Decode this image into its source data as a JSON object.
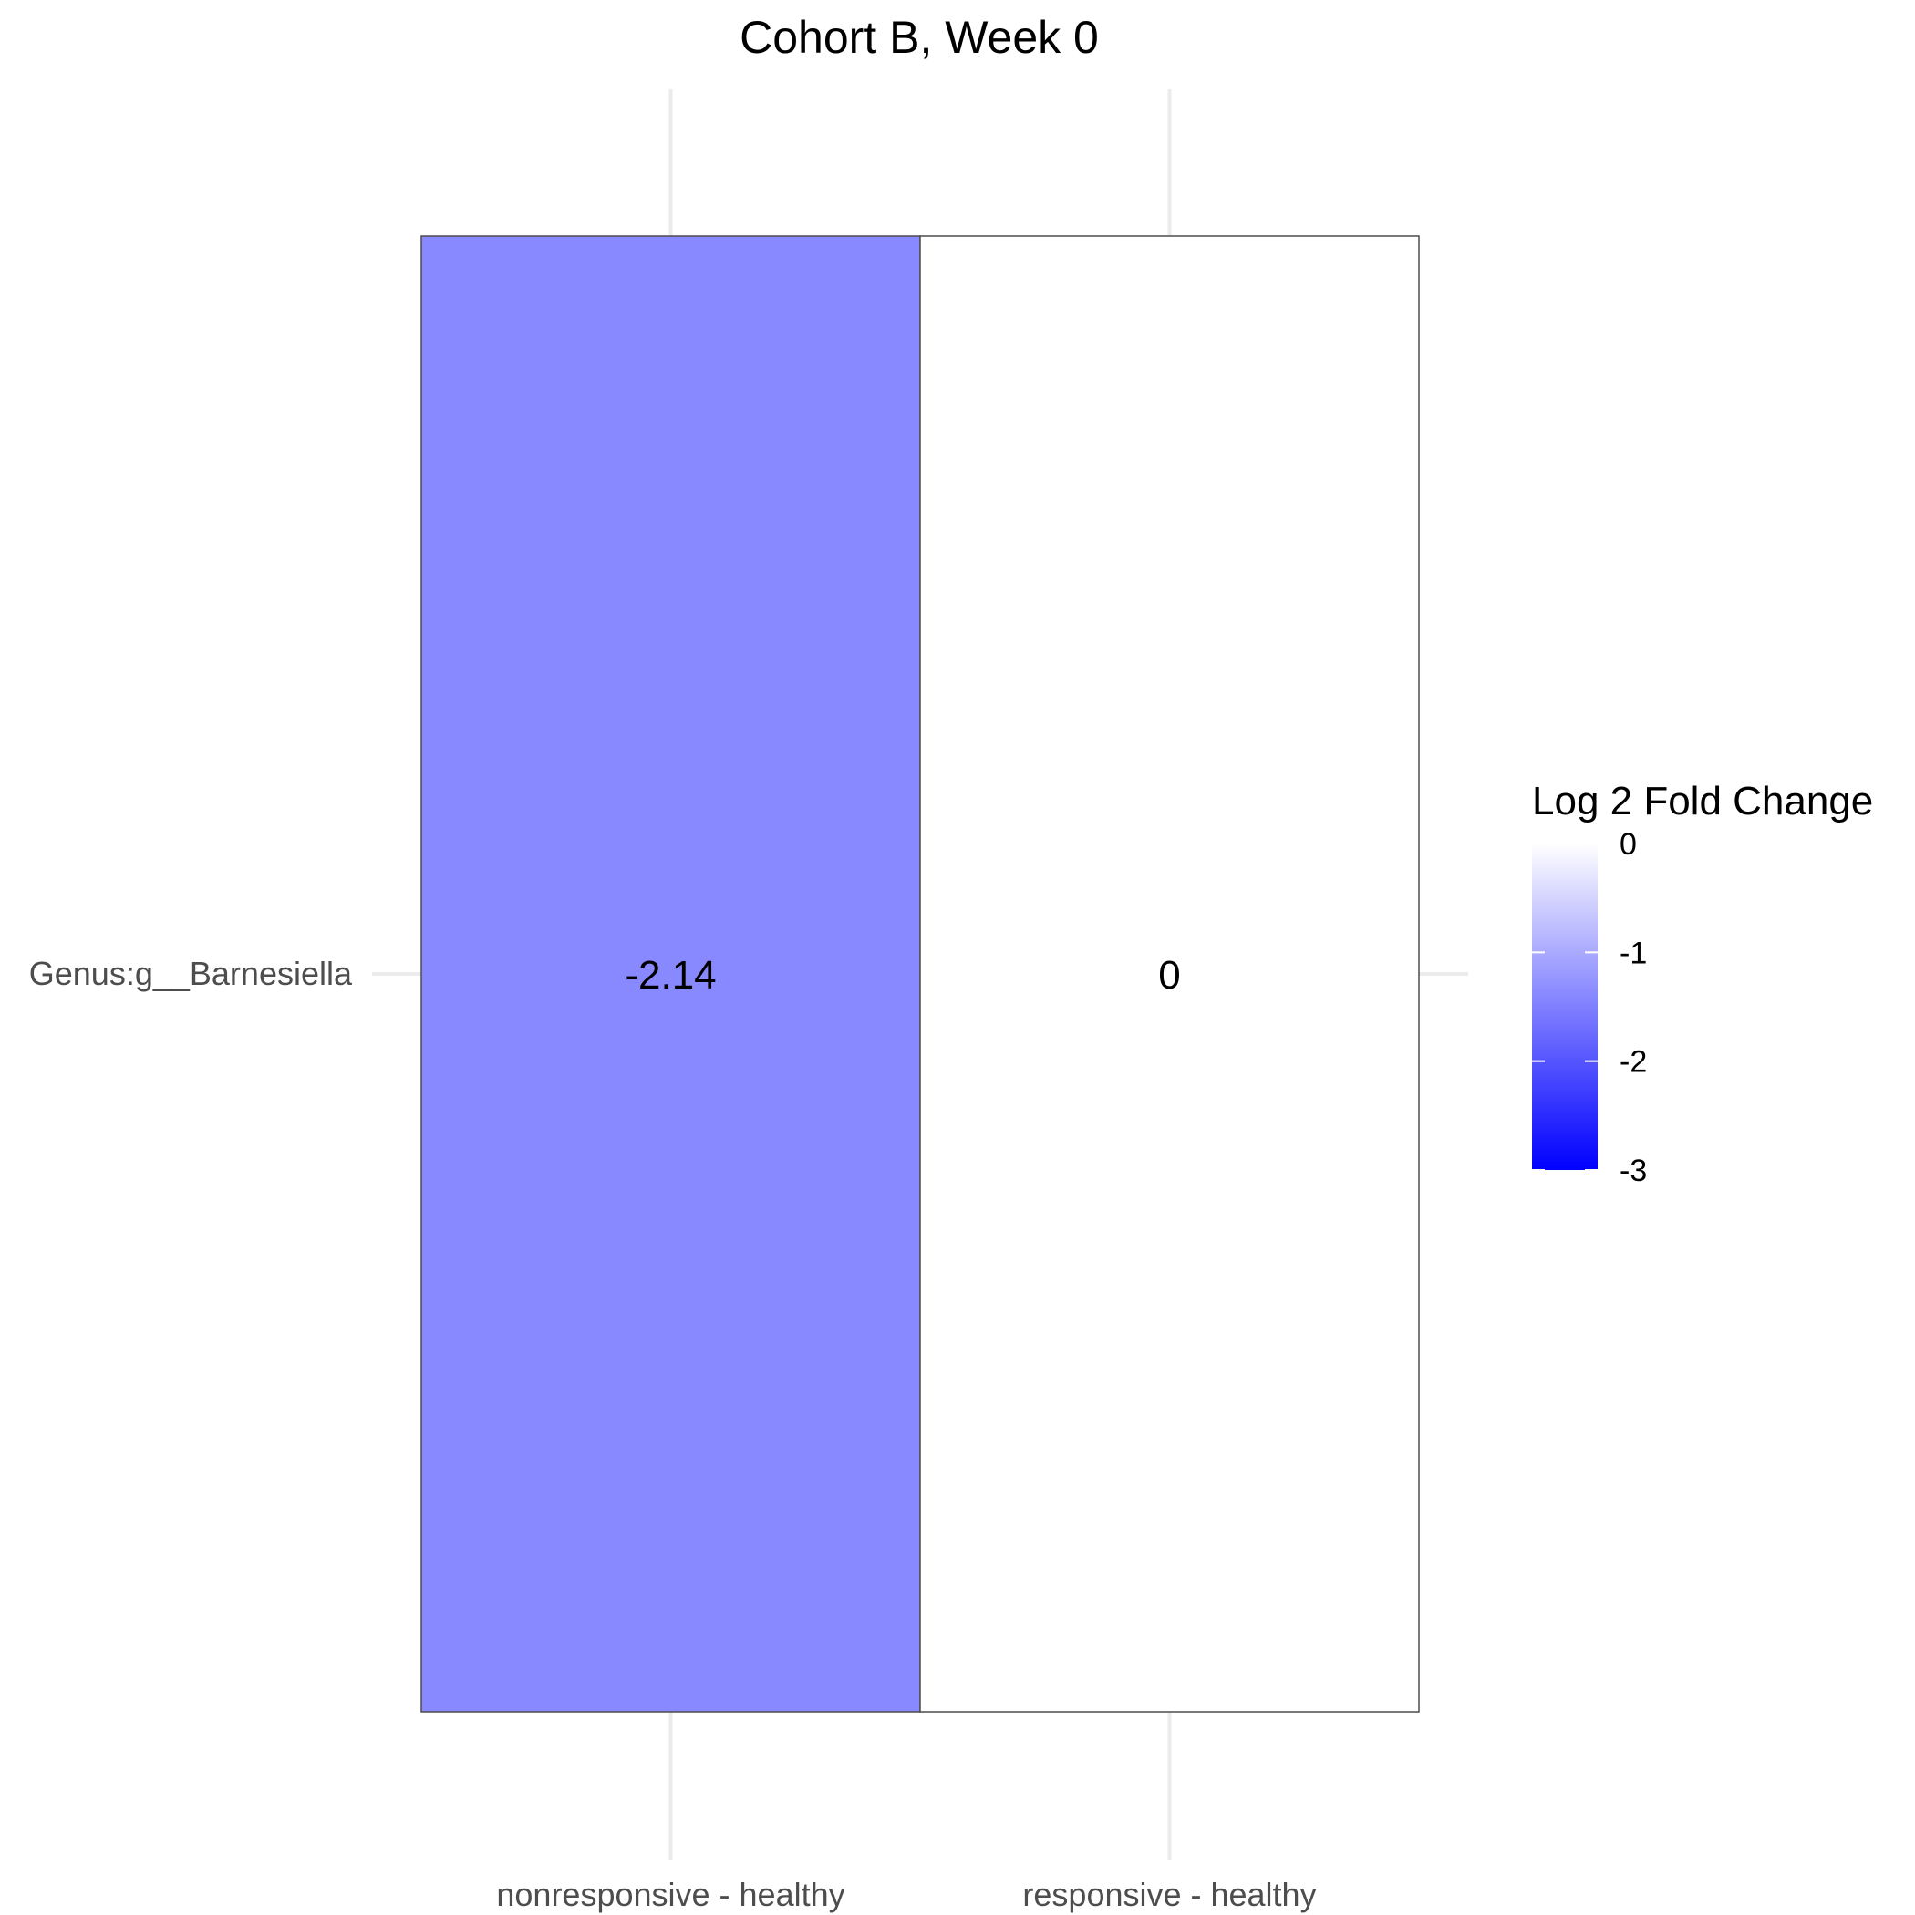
{
  "chart_data": {
    "type": "heatmap",
    "title": "Cohort B, Week 0",
    "xlabel": "",
    "ylabel": "",
    "x_categories": [
      "nonresponsive - healthy",
      "responsive - healthy"
    ],
    "y_categories": [
      "Genus:g__Barnesiella"
    ],
    "cells": [
      {
        "x": "nonresponsive - healthy",
        "y": "Genus:g__Barnesiella",
        "value": -2.14,
        "label": "-2.14"
      },
      {
        "x": "responsive - healthy",
        "y": "Genus:g__Barnesiella",
        "value": 0,
        "label": "0"
      }
    ],
    "legend": {
      "title": "Log 2 Fold Change",
      "placement": "right",
      "range": [
        -3,
        0
      ],
      "ticks": [
        0,
        -1,
        -2,
        -3
      ],
      "tick_labels": [
        "0",
        "-1",
        "-2",
        "-3"
      ],
      "low_color": "#0000ff",
      "high_color": "#ffffff"
    },
    "grid": true
  }
}
